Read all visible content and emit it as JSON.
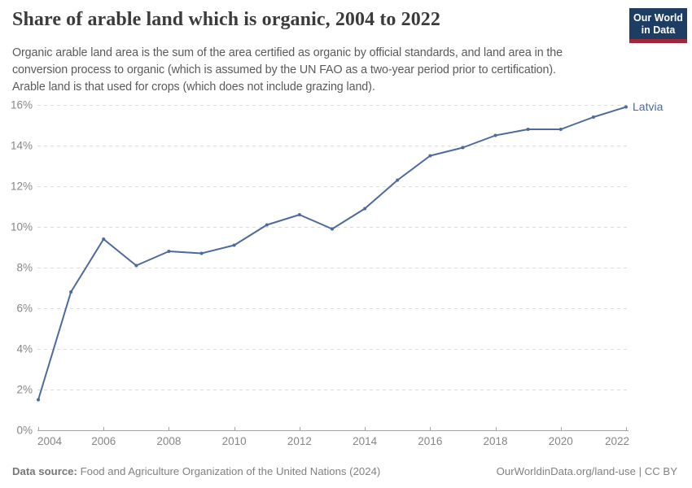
{
  "header": {
    "title": "Share of arable land which is organic, 2004 to 2022",
    "subtitle_lines": [
      "Organic arable land area is the sum of the area certified as organic by official standards, and land area in the",
      "conversion process to organic (which is assumed by the UN FAO as a two-year period prior to certification).",
      "Arable land is that used for crops (which does not include grazing land)."
    ]
  },
  "logo": {
    "line1": "Our World",
    "line2": "in Data",
    "bg_color": "#1d3d63",
    "bar_color": "#a12839"
  },
  "chart_data": {
    "type": "line",
    "title": "Share of arable land which is organic, 2004 to 2022",
    "xlabel": "",
    "ylabel": "",
    "x": [
      2004,
      2005,
      2006,
      2007,
      2008,
      2009,
      2010,
      2011,
      2012,
      2013,
      2014,
      2015,
      2016,
      2017,
      2018,
      2019,
      2020,
      2021,
      2022
    ],
    "series": [
      {
        "name": "Latvia",
        "color": "#4C6A9C",
        "values": [
          1.5,
          6.8,
          9.4,
          8.1,
          8.8,
          8.7,
          9.1,
          10.1,
          10.6,
          9.9,
          10.9,
          12.3,
          13.5,
          13.9,
          14.5,
          14.8,
          14.8,
          15.4,
          15.9
        ]
      }
    ],
    "xlim": [
      2004,
      2022
    ],
    "ylim": [
      0,
      16
    ],
    "x_ticks": [
      2004,
      2006,
      2008,
      2010,
      2012,
      2014,
      2016,
      2018,
      2020,
      2022
    ],
    "y_ticks": [
      0,
      2,
      4,
      6,
      8,
      10,
      12,
      14,
      16
    ],
    "y_suffix": "%",
    "grid": "horizontal-dashed",
    "grid_color": "#dcdcdc",
    "axis_color": "#a5a5a5",
    "tick_label_color": "#868686",
    "legend": "line-end-label"
  },
  "footer": {
    "source_label": "Data source:",
    "source_text": "Food and Agriculture Organization of the United Nations (2024)",
    "url": "OurWorldinData.org/land-use",
    "divider": " | ",
    "license": "CC BY"
  }
}
